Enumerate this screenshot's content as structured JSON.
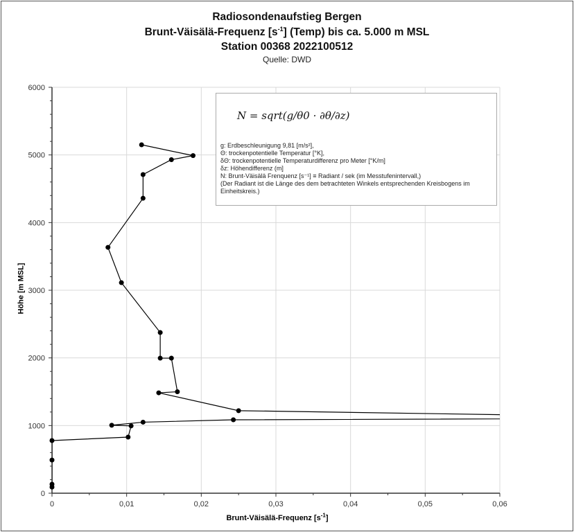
{
  "chart_data": {
    "type": "line",
    "title": [
      "Radiosondenaufstieg Bergen",
      "Brunt-Väisälä-Frequenz [s-1] (Temp) bis ca. 5.000 m MSL",
      "Station 00368 2022100512"
    ],
    "title_line2_parts": {
      "before": "Brunt-Väisälä-Frequenz [s",
      "sup": "-1",
      "after": "] (Temp) bis ca. 5.000 m MSL"
    },
    "subtitle": "Quelle: DWD",
    "xlabel": "Brunt-Väisälä-Frequenz [s-1]",
    "xlabel_parts": {
      "before": "Brunt-Väisälä-Frequenz [s",
      "sup": "-1",
      "after": "]"
    },
    "ylabel": "Höhe [m MSL]",
    "xlim": [
      0,
      0.06
    ],
    "ylim": [
      0,
      6000
    ],
    "xticks": [
      "0",
      "0,01",
      "0,02",
      "0,03",
      "0,04",
      "0,05",
      "0,06"
    ],
    "yticks": [
      "0",
      "1000",
      "2000",
      "3000",
      "4000",
      "5000",
      "6000"
    ],
    "grid": true,
    "series": [
      {
        "name": "N",
        "color": "#000000",
        "points": [
          [
            0,
            90
          ],
          [
            0,
            133
          ],
          [
            0,
            490
          ],
          [
            0,
            778
          ],
          [
            0.0102,
            829
          ],
          [
            0.0106,
            995
          ],
          [
            0.008,
            1005
          ],
          [
            0.0122,
            1050
          ],
          [
            0.0243,
            1085
          ],
          [
            0.09,
            1110
          ],
          [
            0.025,
            1220
          ],
          [
            0.0143,
            1484
          ],
          [
            0.0168,
            1500
          ],
          [
            0.016,
            1996
          ],
          [
            0.0145,
            1996
          ],
          [
            0.0145,
            2375
          ],
          [
            0.0093,
            3112
          ],
          [
            0.0075,
            3634
          ],
          [
            0.0122,
            4360
          ],
          [
            0.0122,
            4710
          ],
          [
            0.016,
            4930
          ],
          [
            0.0189,
            4990
          ],
          [
            0.012,
            5150
          ]
        ]
      }
    ]
  },
  "legend_box": {
    "formula": "N = sqrt(g/θ0 · ∂θ/∂z)",
    "lines": [
      "g: Erdbeschleunigung 9,81 [m/s²],",
      "Θ: trockenpotentielle Temperatur [°K],",
      "δΘ: trockenpotentielle Temperaturdifferenz pro Meter [°K/m]",
      "δz: Höhendifferenz (m]",
      "N: Brunt-Väisälä Frenquenz [s⁻¹] ≡ Radiant / sek (im Messtufenintervall,)",
      "(Der Radiant ist die Länge des dem betrachteten Winkels entsprechenden Kreisbogens im",
      "Einheitskreis.)"
    ]
  }
}
